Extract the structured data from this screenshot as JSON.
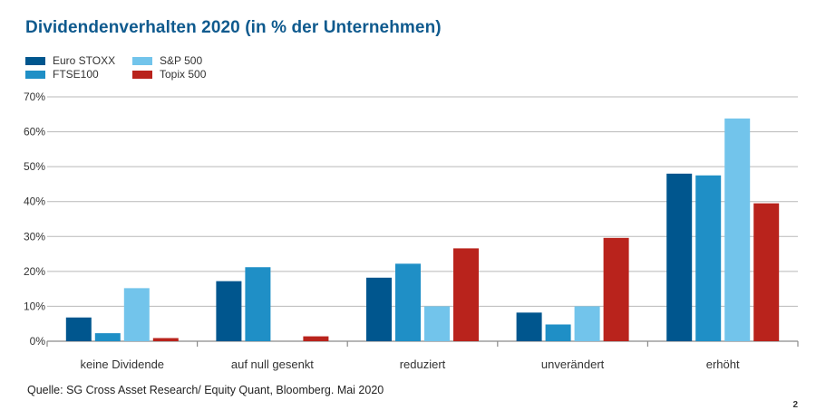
{
  "chart_data": {
    "type": "bar",
    "title": "Dividendenverhalten 2020 (in % der Unternehmen)",
    "categories": [
      "keine Dividende",
      "auf null gesenkt",
      "reduziert",
      "unverändert",
      "erhöht"
    ],
    "series": [
      {
        "name": "Euro STOXX",
        "color": "#00568e",
        "values": [
          6.8,
          17.2,
          18.2,
          8.2,
          48.0
        ]
      },
      {
        "name": "FTSE100",
        "color": "#1f8fc6",
        "values": [
          2.3,
          21.2,
          22.2,
          4.8,
          47.5
        ]
      },
      {
        "name": "S&P 500",
        "color": "#72c4eb",
        "values": [
          15.2,
          0,
          10.0,
          10.0,
          63.8
        ]
      },
      {
        "name": "Topix 500",
        "color": "#b9231c",
        "values": [
          0.9,
          1.4,
          26.6,
          29.6,
          39.5
        ]
      }
    ],
    "y_ticks": [
      "0%",
      "10%",
      "20%",
      "30%",
      "40%",
      "50%",
      "60%",
      "70%"
    ],
    "ylim": [
      0,
      70
    ],
    "xlabel": "",
    "ylabel": "",
    "grid": true,
    "legend_position": "top-left",
    "source": "Quelle: SG Cross Asset Research/ Equity Quant, Bloomberg. Mai 2020",
    "page_number": "2"
  },
  "colors": {
    "title": "#0f5a8e",
    "grid": "#b9b9b9",
    "axis": "#8a8a8a",
    "text": "#333333"
  }
}
